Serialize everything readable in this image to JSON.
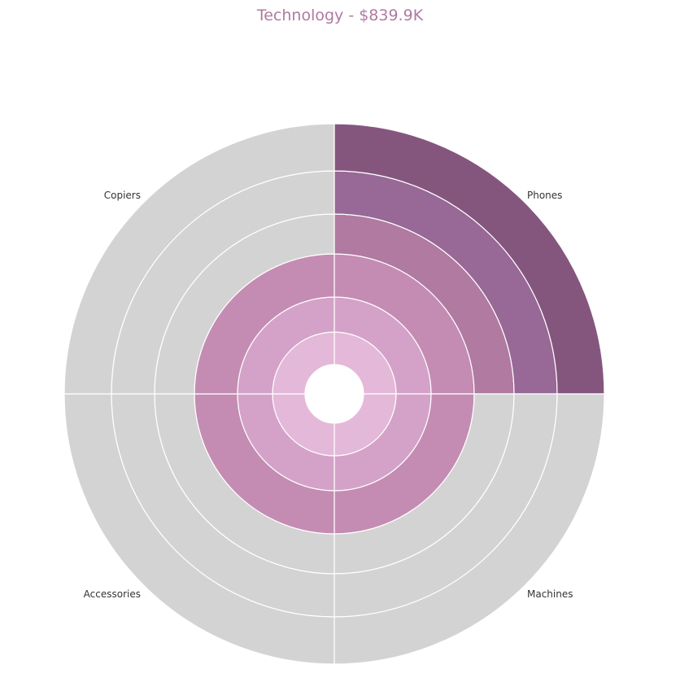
{
  "chart_data": {
    "type": "radial-bar",
    "title": "Technology - $839.9K",
    "categories": [
      "Phones",
      "Machines",
      "Accessories",
      "Copiers"
    ],
    "levels": 6,
    "series": [
      {
        "values": [
          6,
          3,
          3,
          3
        ]
      }
    ],
    "colors": {
      "ring_fills": [
        "#e4b8d8",
        "#d4a2c8",
        "#c48cb3",
        "#b07aa1",
        "#986896",
        "#84567e"
      ],
      "track": "#d3d3d3",
      "title": "#b07aa1"
    }
  }
}
